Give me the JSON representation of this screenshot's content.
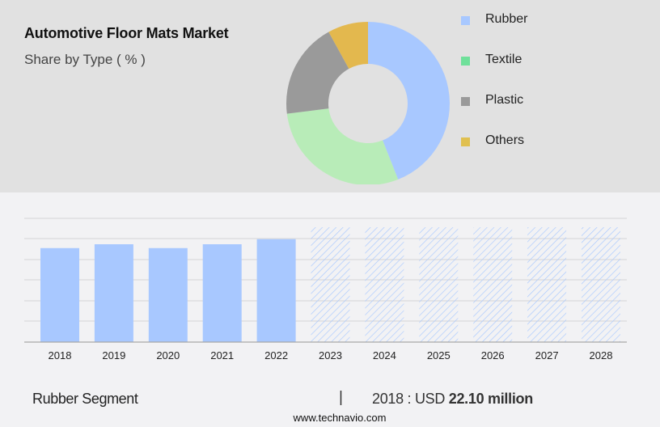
{
  "header": {
    "title": "Automotive Floor Mats Market",
    "subtitle": "Share by Type ( % )"
  },
  "legend": [
    {
      "label": "Rubber",
      "color": "#a8c8ff"
    },
    {
      "label": "Textile",
      "color": "#6fe09a"
    },
    {
      "label": "Plastic",
      "color": "#9a9a9a"
    },
    {
      "label": "Others",
      "color": "#e0c050"
    }
  ],
  "footer": {
    "segment": "Rubber Segment",
    "separator": "|",
    "year_prefix": "2018 : USD ",
    "value": "22.10 million",
    "url": "www.technavio.com"
  },
  "chart_data": [
    {
      "type": "pie",
      "title": "Automotive Floor Mats Market",
      "subtitle": "Share by Type ( % )",
      "donut": true,
      "categories": [
        "Rubber",
        "Textile",
        "Plastic",
        "Others"
      ],
      "values": [
        44,
        29,
        19,
        8
      ],
      "colors": [
        "#a8c8ff",
        "#b8ecb8",
        "#9a9a9a",
        "#e3b84e"
      ],
      "legend_position": "right"
    },
    {
      "type": "bar",
      "title": "Rubber Segment",
      "categories": [
        "2018",
        "2019",
        "2020",
        "2021",
        "2022",
        "2023",
        "2024",
        "2025",
        "2026",
        "2027",
        "2028"
      ],
      "values": [
        22.1,
        23.0,
        22.1,
        23.0,
        24.2,
        27.0,
        27.0,
        27.0,
        27.0,
        27.0,
        27.0
      ],
      "forecast_from": "2023",
      "forecast_style": "hatched (values not shown)",
      "annotation": "2018 : USD 22.10 million",
      "xlabel": "",
      "ylabel": "",
      "grid": true,
      "ylim": [
        0,
        30
      ]
    }
  ]
}
